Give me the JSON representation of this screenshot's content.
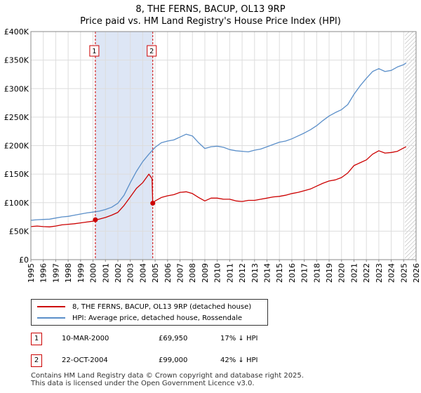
{
  "header": {
    "title": "8, THE FERNS, BACUP, OL13 9RP",
    "subtitle": "Price paid vs. HM Land Registry's House Price Index (HPI)"
  },
  "legend": {
    "property_label": "8, THE FERNS, BACUP, OL13 9RP (detached house)",
    "hpi_label": "HPI: Average price, detached house, Rossendale"
  },
  "transactions": [
    {
      "num": "1",
      "date": "10-MAR-2000",
      "price": "£69,950",
      "hpi_diff": "17% ↓ HPI"
    },
    {
      "num": "2",
      "date": "22-OCT-2004",
      "price": "£99,000",
      "hpi_diff": "42% ↓ HPI"
    }
  ],
  "footer": {
    "line1": "Contains HM Land Registry data © Crown copyright and database right 2025.",
    "line2": "This data is licensed under the Open Government Licence v3.0."
  },
  "colors": {
    "property": "#cc0000",
    "hpi": "#5b8fc9",
    "shade": "#dde6f5",
    "grid": "#dddddd"
  },
  "chart_data": {
    "type": "line",
    "title": "8, THE FERNS, BACUP, OL13 9RP",
    "subtitle": "Price paid vs. HM Land Registry's House Price Index (HPI)",
    "xlabel": "",
    "ylabel": "",
    "xlim": [
      1995,
      2026
    ],
    "ylim": [
      0,
      400000
    ],
    "grid": true,
    "y_ticks": [
      0,
      50000,
      100000,
      150000,
      200000,
      250000,
      300000,
      350000,
      400000
    ],
    "y_tick_labels": [
      "£0",
      "£50K",
      "£100K",
      "£150K",
      "£200K",
      "£250K",
      "£300K",
      "£350K",
      "£400K"
    ],
    "x_ticks": [
      1995,
      1996,
      1997,
      1998,
      1999,
      2000,
      2001,
      2002,
      2003,
      2004,
      2005,
      2006,
      2007,
      2008,
      2009,
      2010,
      2011,
      2012,
      2013,
      2014,
      2015,
      2016,
      2017,
      2018,
      2019,
      2020,
      2021,
      2022,
      2023,
      2024,
      2025,
      2026
    ],
    "x_tick_labels": [
      "1995",
      "1996",
      "1997",
      "1998",
      "1999",
      "2000",
      "2001",
      "2002",
      "2003",
      "2004",
      "2005",
      "2006",
      "2007",
      "2008",
      "2009",
      "2010",
      "2011",
      "2012",
      "2013",
      "2014",
      "2015",
      "2016",
      "2017",
      "2018",
      "2019",
      "2020",
      "2021",
      "2022",
      "2023",
      "2024",
      "2025",
      "2026"
    ],
    "shaded_region": [
      2000.19,
      2004.81
    ],
    "future_hatch_from": 2025.1,
    "markers": [
      {
        "label": "1",
        "x": 2000.19,
        "y": 69950
      },
      {
        "label": "2",
        "x": 2004.81,
        "y": 99000
      }
    ],
    "series": [
      {
        "name": "8, THE FERNS, BACUP, OL13 9RP (detached house)",
        "x": [
          1995,
          1995.5,
          1996,
          1996.5,
          1997,
          1997.5,
          1998,
          1998.5,
          1999,
          1999.5,
          2000.0,
          2000.19,
          2000.5,
          2001,
          2001.5,
          2002,
          2002.5,
          2003,
          2003.5,
          2004,
          2004.5,
          2004.75,
          2004.81,
          2005,
          2005.5,
          2006,
          2006.5,
          2007,
          2007.5,
          2008,
          2008.5,
          2009,
          2009.5,
          2010,
          2010.5,
          2011,
          2011.5,
          2012,
          2012.5,
          2013,
          2013.5,
          2014,
          2014.5,
          2015,
          2015.5,
          2016,
          2016.5,
          2017,
          2017.5,
          2018,
          2018.5,
          2019,
          2019.5,
          2020,
          2020.5,
          2021,
          2021.5,
          2022,
          2022.5,
          2023,
          2023.5,
          2024,
          2024.5,
          2025,
          2025.2
        ],
        "values": [
          58000,
          59000,
          58000,
          57500,
          59000,
          61000,
          62000,
          63000,
          64500,
          66000,
          67500,
          69950,
          71000,
          74000,
          78000,
          83000,
          95000,
          110000,
          125000,
          135000,
          150000,
          142000,
          99000,
          103000,
          109000,
          112000,
          114000,
          118000,
          119000,
          116000,
          109000,
          103000,
          108000,
          108000,
          106000,
          106000,
          103000,
          102000,
          104000,
          104000,
          106000,
          108000,
          110000,
          111000,
          113000,
          116000,
          118000,
          121000,
          124000,
          129000,
          134000,
          138000,
          140000,
          144000,
          152000,
          165000,
          170000,
          175000,
          185000,
          191000,
          187000,
          188000,
          190000,
          196000,
          198000
        ]
      },
      {
        "name": "HPI: Average price, detached house, Rossendale",
        "x": [
          1995,
          1995.5,
          1996,
          1996.5,
          1997,
          1997.5,
          1998,
          1998.5,
          1999,
          1999.5,
          2000,
          2000.5,
          2001,
          2001.5,
          2002,
          2002.5,
          2003,
          2003.5,
          2004,
          2004.5,
          2005,
          2005.5,
          2006,
          2006.5,
          2007,
          2007.5,
          2008,
          2008.5,
          2009,
          2009.5,
          2010,
          2010.5,
          2011,
          2011.5,
          2012,
          2012.5,
          2013,
          2013.5,
          2014,
          2014.5,
          2015,
          2015.5,
          2016,
          2016.5,
          2017,
          2017.5,
          2018,
          2018.5,
          2019,
          2019.5,
          2020,
          2020.5,
          2021,
          2021.5,
          2022,
          2022.5,
          2023,
          2023.5,
          2024,
          2024.5,
          2025,
          2025.2
        ],
        "values": [
          69000,
          70000,
          70500,
          71000,
          73000,
          75000,
          76000,
          78000,
          80000,
          82000,
          83500,
          85000,
          88000,
          92000,
          99000,
          113000,
          135000,
          155000,
          172000,
          185000,
          197000,
          205000,
          208000,
          210000,
          215000,
          220000,
          217000,
          205000,
          195000,
          198000,
          199000,
          197000,
          193000,
          191000,
          190000,
          189000,
          192000,
          194000,
          198000,
          202000,
          206000,
          208000,
          212000,
          217000,
          222000,
          228000,
          235000,
          244000,
          252000,
          258000,
          263000,
          272000,
          290000,
          305000,
          318000,
          330000,
          335000,
          330000,
          332000,
          338000,
          342000,
          345000
        ]
      }
    ]
  }
}
